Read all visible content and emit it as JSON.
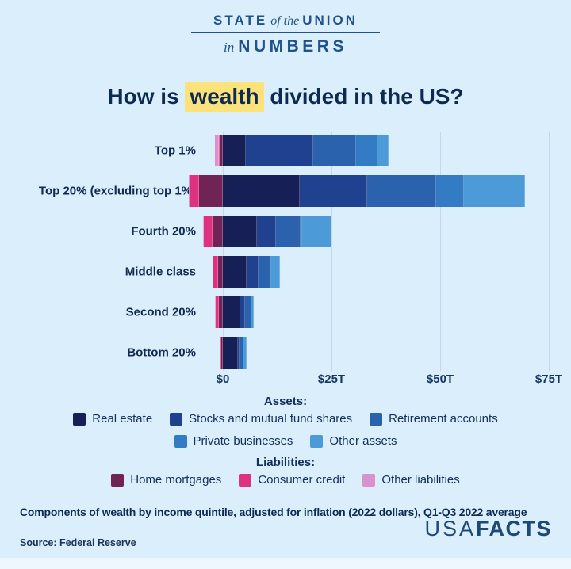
{
  "logo": {
    "line1_left": "STATE",
    "line1_mid": "of the",
    "line1_right": "UNION",
    "line2_left": "in",
    "line2_right": "NUMBERS"
  },
  "title": {
    "pre": "How is",
    "highlight": "wealth",
    "post": "divided in the US?",
    "highlight_color": "#fbe27b"
  },
  "chart_data": {
    "type": "bar",
    "orientation": "horizontal",
    "stacked": true,
    "units": "trillions of 2022 dollars",
    "title": "How is wealth divided in the US?",
    "categories": [
      "Top 1%",
      "Top 20% (excluding top 1%)",
      "Fourth 20%",
      "Middle class",
      "Second 20%",
      "Bottom 20%"
    ],
    "x_ticks": [
      {
        "label": "$0",
        "value": 0
      },
      {
        "label": "$25T",
        "value": 25
      },
      {
        "label": "$50T",
        "value": 50
      },
      {
        "label": "$75T",
        "value": 75
      }
    ],
    "xlim": [
      -8.5,
      80
    ],
    "grid": true,
    "series": [
      {
        "name": "Real estate",
        "group": "asset",
        "color": "#161f56",
        "values": [
          5.3,
          17.7,
          7.8,
          5.4,
          4.0,
          3.4
        ]
      },
      {
        "name": "Stocks and mutual fund shares",
        "group": "asset",
        "color": "#20418f",
        "values": [
          15.5,
          15.5,
          4.5,
          2.9,
          1.2,
          0.4
        ]
      },
      {
        "name": "Retirement accounts",
        "group": "asset",
        "color": "#2a62ae",
        "values": [
          9.8,
          15.9,
          5.5,
          2.7,
          1.3,
          0.9
        ]
      },
      {
        "name": "Private businesses",
        "group": "asset",
        "color": "#337cc4",
        "values": [
          4.9,
          6.4,
          0.5,
          0.2,
          0.1,
          0.1
        ]
      },
      {
        "name": "Other assets",
        "group": "asset",
        "color": "#4d9ad9",
        "values": [
          2.6,
          14.0,
          6.7,
          1.9,
          0.5,
          0.7
        ]
      },
      {
        "name": "Home mortgages",
        "group": "liability",
        "color": "#702355",
        "values": [
          -0.7,
          -5.5,
          -2.4,
          -1.1,
          -0.9,
          -0.4
        ]
      },
      {
        "name": "Consumer credit",
        "group": "liability",
        "color": "#de3180",
        "values": [
          -0.3,
          -2.0,
          -2.0,
          -1.1,
          -0.8,
          -0.3
        ]
      },
      {
        "name": "Other liabilities",
        "group": "liability",
        "color": "#d893cf",
        "values": [
          -0.8,
          -0.4,
          -0.2,
          -0.1,
          -0.1,
          -0.1
        ]
      }
    ]
  },
  "legend": {
    "assets_heading": "Assets:",
    "liabilities_heading": "Liabilities:",
    "rows": [
      [
        "Real estate",
        "Stocks and mutual fund shares",
        "Retirement accounts"
      ],
      [
        "Private businesses",
        "Other assets"
      ],
      [
        "Home mortgages",
        "Consumer credit",
        "Other liabilities"
      ]
    ]
  },
  "footer": {
    "caption": "Components of wealth by income quintile, adjusted for inflation (2022 dollars), Q1-Q3 2022 average",
    "source": "Source: Federal Reserve",
    "brand_light": "USA",
    "brand_bold": "FACTS"
  }
}
